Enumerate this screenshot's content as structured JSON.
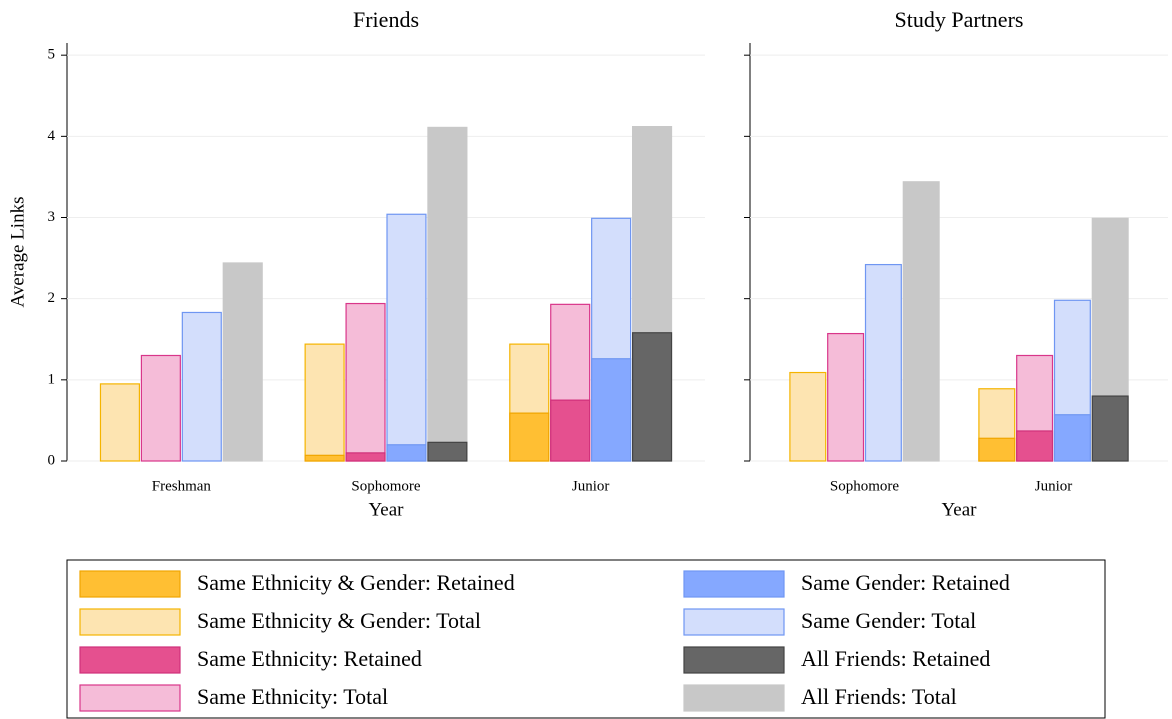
{
  "chart_data": [
    {
      "type": "bar",
      "title": "Friends",
      "ylabel": "Average Links",
      "xlabel": "Year",
      "categories": [
        "Freshman",
        "Sophomore",
        "Junior"
      ],
      "ylim": [
        0,
        5.15
      ],
      "yticks": [
        0,
        1,
        2,
        3,
        4,
        5
      ],
      "ytick_labels": true,
      "grid": true,
      "series": [
        {
          "name": "Same Ethnicity & Gender: Retained",
          "color": "#ffbf33",
          "edgecolor": "#f0a500",
          "values": [
            null,
            0.07,
            0.59
          ]
        },
        {
          "name": "Same Ethnicity & Gender: Total",
          "color": "#fde4b1",
          "edgecolor": "#f5b400",
          "values": [
            0.95,
            1.44,
            1.44
          ]
        },
        {
          "name": "Same Ethnicity: Retained",
          "color": "#e5508f",
          "edgecolor": "#d0307a",
          "values": [
            null,
            0.1,
            0.75
          ]
        },
        {
          "name": "Same Ethnicity: Total",
          "color": "#f5bcd8",
          "edgecolor": "#d9368a",
          "values": [
            1.3,
            1.94,
            1.93
          ]
        },
        {
          "name": "Same Gender: Retained",
          "color": "#85a8ff",
          "edgecolor": "#6f96f2",
          "values": [
            null,
            0.2,
            1.26
          ]
        },
        {
          "name": "Same Gender: Total",
          "color": "#d3defc",
          "edgecolor": "#6f96f2",
          "values": [
            1.83,
            3.04,
            2.99
          ]
        },
        {
          "name": "All Friends: Retained",
          "color": "#666666",
          "edgecolor": "#444444",
          "values": [
            null,
            0.23,
            1.58
          ]
        },
        {
          "name": "All Friends: Total",
          "color": "#c8c8c8",
          "edgecolor": "#c8c8c8",
          "values": [
            2.44,
            4.11,
            4.12
          ]
        }
      ]
    },
    {
      "type": "bar",
      "title": "Study Partners",
      "xlabel": "Year",
      "categories": [
        "Sophomore",
        "Junior"
      ],
      "ylim": [
        0,
        5.15
      ],
      "yticks": [
        0,
        1,
        2,
        3,
        4,
        5
      ],
      "ytick_labels": false,
      "grid": true,
      "series": [
        {
          "color": "#ffbf33",
          "edgecolor": "#f0a500",
          "values": [
            null,
            0.28
          ]
        },
        {
          "color": "#fde4b1",
          "edgecolor": "#f5b400",
          "values": [
            1.09,
            0.89
          ]
        },
        {
          "color": "#e5508f",
          "edgecolor": "#d0307a",
          "values": [
            null,
            0.37
          ]
        },
        {
          "color": "#f5bcd8",
          "edgecolor": "#d9368a",
          "values": [
            1.57,
            1.3
          ]
        },
        {
          "color": "#85a8ff",
          "edgecolor": "#6f96f2",
          "values": [
            null,
            0.57
          ]
        },
        {
          "color": "#d3defc",
          "edgecolor": "#6f96f2",
          "values": [
            2.42,
            1.98
          ]
        },
        {
          "color": "#666666",
          "edgecolor": "#444444",
          "values": [
            null,
            0.8
          ]
        },
        {
          "color": "#c8c8c8",
          "edgecolor": "#c8c8c8",
          "values": [
            3.44,
            2.99
          ]
        }
      ]
    }
  ]
}
